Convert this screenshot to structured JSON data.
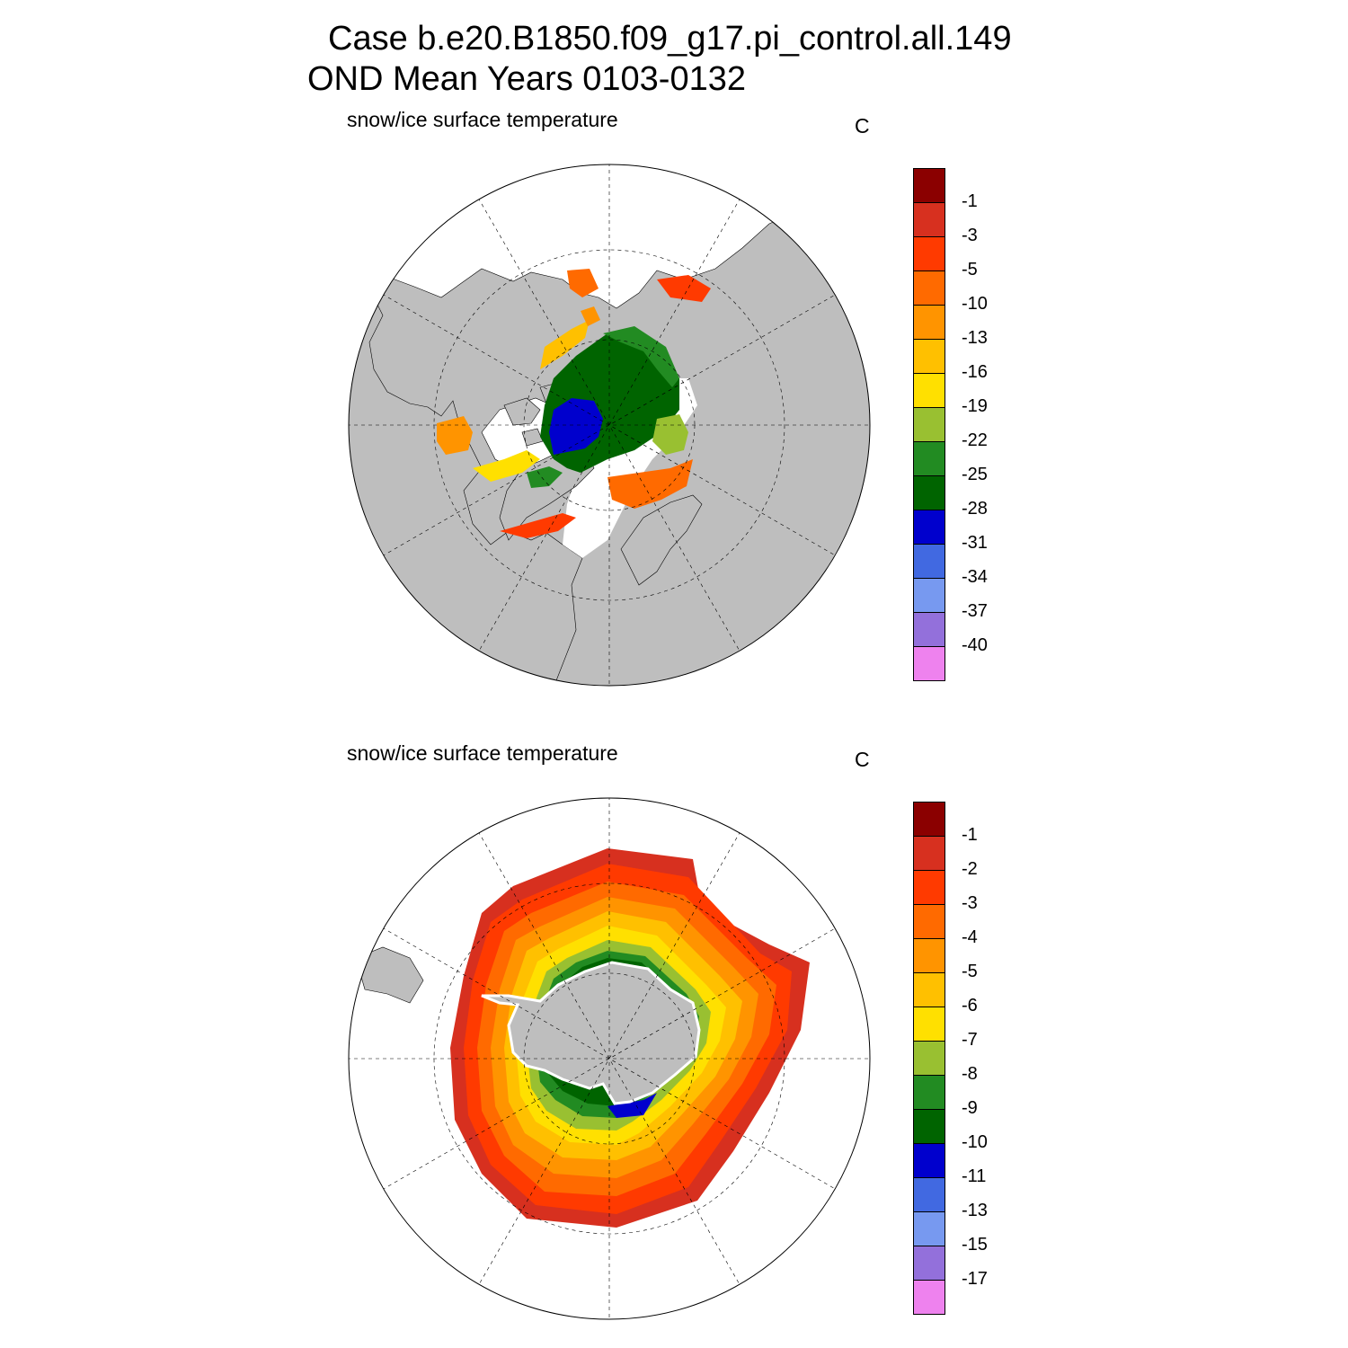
{
  "figure": {
    "title_line1": "Case b.e20.B1850.f09_g17.pi_control.all.149",
    "title_line2": "OND Mean   Years 0103-0132"
  },
  "panels": [
    {
      "label": "snow/ice surface temperature",
      "units": "C",
      "hemisphere": "north",
      "colorbar": {
        "labels": [
          "-1",
          "-3",
          "-5",
          "-10",
          "-13",
          "-16",
          "-19",
          "-22",
          "-25",
          "-28",
          "-31",
          "-34",
          "-37",
          "-40"
        ],
        "colors": [
          "#8b0000",
          "#d7301f",
          "#ff3a00",
          "#ff6a00",
          "#ff9400",
          "#ffc000",
          "#ffe000",
          "#99c031",
          "#228b22",
          "#006400",
          "#0000cd",
          "#4169e1",
          "#7799f0",
          "#9370db",
          "#ee82ee"
        ]
      }
    },
    {
      "label": "snow/ice surface temperature",
      "units": "C",
      "hemisphere": "south",
      "colorbar": {
        "labels": [
          "-1",
          "-2",
          "-3",
          "-4",
          "-5",
          "-6",
          "-7",
          "-8",
          "-9",
          "-10",
          "-11",
          "-13",
          "-15",
          "-17"
        ],
        "colors": [
          "#8b0000",
          "#d7301f",
          "#ff3a00",
          "#ff6a00",
          "#ff9400",
          "#ffc000",
          "#ffe000",
          "#99c031",
          "#228b22",
          "#006400",
          "#0000cd",
          "#4169e1",
          "#7799f0",
          "#9370db",
          "#ee82ee"
        ]
      }
    }
  ],
  "map_colors": {
    "land": "#bebebe",
    "ocean": "#ffffff",
    "coast": "#000000"
  }
}
